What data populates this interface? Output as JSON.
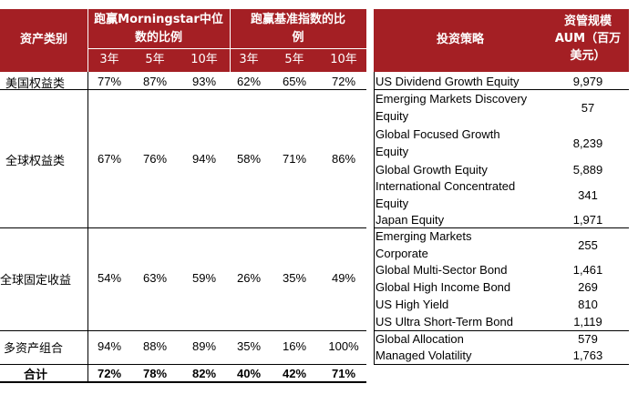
{
  "left_table": {
    "header": {
      "asset_class": "资产类别",
      "beat_mstar": "跑赢Morningstar中位数的比例",
      "beat_mstar_l1": "跑赢Morningstar中位",
      "beat_mstar_l2": "数的比例",
      "beat_index": "跑赢基准指数的比例",
      "beat_index_l1": "跑赢基准指数的比",
      "beat_index_l2": "例",
      "periods": [
        "3年",
        "5年",
        "10年",
        "3年",
        "5年",
        "10年"
      ]
    },
    "rows": [
      {
        "category": "美国权益类",
        "values": [
          "77%",
          "87%",
          "93%",
          "62%",
          "65%",
          "72%"
        ]
      },
      {
        "category": "全球权益类",
        "values": [
          "67%",
          "76%",
          "94%",
          "58%",
          "71%",
          "86%"
        ]
      },
      {
        "category": "全球固定收益",
        "values": [
          "54%",
          "63%",
          "59%",
          "26%",
          "35%",
          "49%"
        ]
      },
      {
        "category": "多资产组合",
        "values": [
          "94%",
          "88%",
          "89%",
          "35%",
          "16%",
          "100%"
        ]
      }
    ],
    "total": {
      "category": "合计",
      "values": [
        "72%",
        "78%",
        "82%",
        "40%",
        "42%",
        "71%"
      ]
    }
  },
  "right_table": {
    "header": {
      "strategy": "投资策略",
      "aum": "资管规模AUM（百万美元）",
      "aum_l1": "资管规模",
      "aum_l2": "AUM（百万",
      "aum_l3": "美元）"
    },
    "rows": [
      {
        "strategy": [
          "US Dividend Growth Equity"
        ],
        "aum": "9,979"
      },
      {
        "strategy": [
          "Emerging Markets Discovery",
          "Equity"
        ],
        "aum": "57"
      },
      {
        "strategy": [
          "Global Focused Growth",
          "Equity"
        ],
        "aum": "8,239"
      },
      {
        "strategy": [
          "Global Growth Equity"
        ],
        "aum": "5,889"
      },
      {
        "strategy": [
          "International Concentrated",
          "Equity"
        ],
        "aum": "341"
      },
      {
        "strategy": [
          "Japan Equity"
        ],
        "aum": "1,971"
      },
      {
        "strategy": [
          "Emerging Markets",
          "Corporate"
        ],
        "aum": "255"
      },
      {
        "strategy": [
          "Global Multi-Sector Bond"
        ],
        "aum": "1,461"
      },
      {
        "strategy": [
          "Global High Income Bond"
        ],
        "aum": "269"
      },
      {
        "strategy": [
          "US High Yield"
        ],
        "aum": "810"
      },
      {
        "strategy": [
          "US Ultra Short-Term Bond"
        ],
        "aum": "1,119"
      },
      {
        "strategy": [
          "Global Allocation"
        ],
        "aum": "579"
      },
      {
        "strategy": [
          "Managed Volatility"
        ],
        "aum": "1,763"
      }
    ]
  },
  "colors": {
    "header_bg": "#a41f24",
    "header_text": "#ffffff"
  }
}
